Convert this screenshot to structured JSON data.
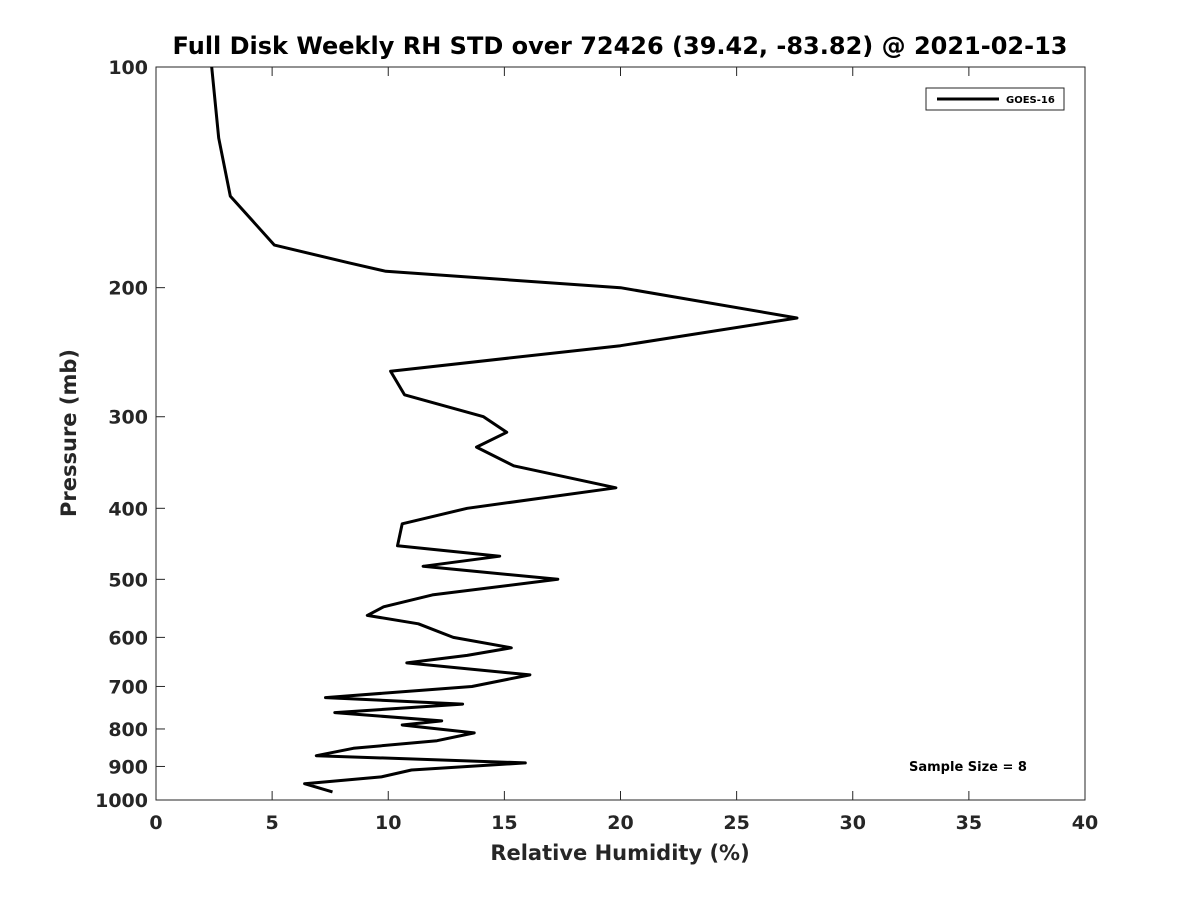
{
  "chart_data": {
    "type": "line",
    "title": "Full Disk Weekly RH STD over 72426 (39.42, -83.82) @ 2021-02-13",
    "xlabel": "Relative Humidity (%)",
    "ylabel": "Pressure (mb)",
    "xlim": [
      0,
      40
    ],
    "ylim": [
      100,
      1000
    ],
    "y_scale": "log",
    "y_reversed": true,
    "x_ticks": [
      0,
      5,
      10,
      15,
      20,
      25,
      30,
      35,
      40
    ],
    "y_ticks": [
      100,
      200,
      300,
      400,
      500,
      600,
      700,
      800,
      900,
      1000
    ],
    "grid": false,
    "legend": {
      "placement": "top-right",
      "entries": [
        "GOES-16"
      ]
    },
    "annotation": "Sample Size = 8",
    "color": "#000000",
    "series": [
      {
        "name": "GOES-16",
        "points": [
          [
            2.4,
            100
          ],
          [
            2.7,
            125
          ],
          [
            3.2,
            150
          ],
          [
            5.1,
            175
          ],
          [
            8.3,
            185
          ],
          [
            9.9,
            190
          ],
          [
            20,
            200
          ],
          [
            27.6,
            220
          ],
          [
            20,
            240
          ],
          [
            10.1,
            260
          ],
          [
            10.7,
            280
          ],
          [
            14.1,
            300
          ],
          [
            15.1,
            315
          ],
          [
            13.8,
            330
          ],
          [
            15.4,
            350
          ],
          [
            19.8,
            375
          ],
          [
            13.4,
            400
          ],
          [
            10.6,
            420
          ],
          [
            10.4,
            450
          ],
          [
            14.8,
            465
          ],
          [
            11.5,
            480
          ],
          [
            17.3,
            500
          ],
          [
            11.9,
            525
          ],
          [
            9.8,
            545
          ],
          [
            9.1,
            560
          ],
          [
            11.3,
            575
          ],
          [
            12.8,
            600
          ],
          [
            15.3,
            620
          ],
          [
            13.4,
            635
          ],
          [
            10.8,
            650
          ],
          [
            16.1,
            675
          ],
          [
            13.6,
            700
          ],
          [
            7.3,
            725
          ],
          [
            13.2,
            740
          ],
          [
            7.7,
            760
          ],
          [
            12.3,
            780
          ],
          [
            10.6,
            790
          ],
          [
            13.7,
            810
          ],
          [
            12.1,
            830
          ],
          [
            8.5,
            850
          ],
          [
            6.9,
            870
          ],
          [
            15.9,
            890
          ],
          [
            11.0,
            910
          ],
          [
            9.7,
            930
          ],
          [
            6.4,
            950
          ],
          [
            7.6,
            975
          ]
        ]
      }
    ]
  }
}
